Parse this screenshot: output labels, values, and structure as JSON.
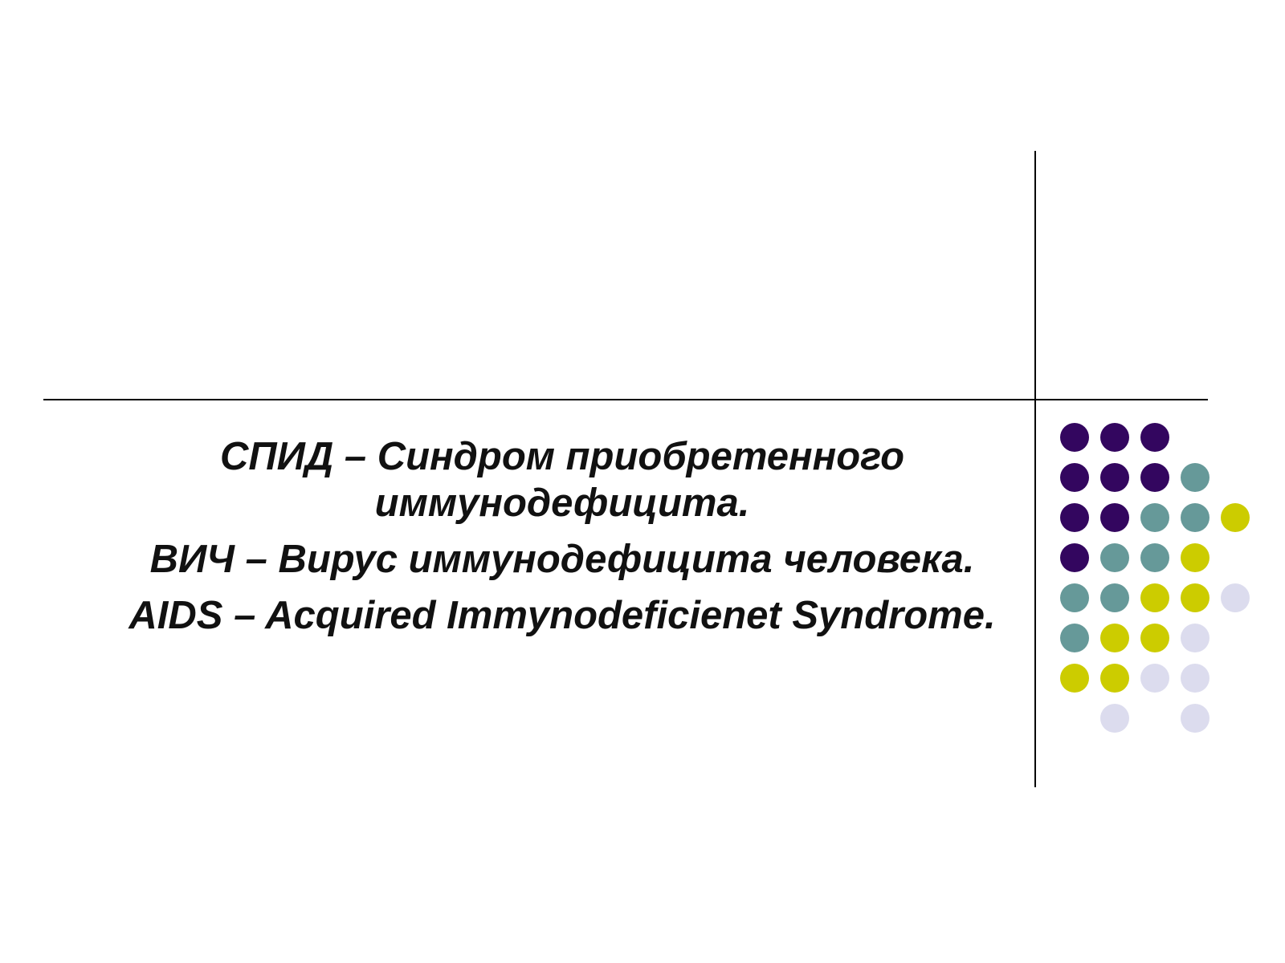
{
  "slide": {
    "lines": [
      "СПИД – Синдром приобретенного иммунодефицита.",
      "ВИЧ – Вирус иммунодефицита человека.",
      "AIDS – Acquired Immynodeficienet Syndrome."
    ]
  },
  "decoration": {
    "palette": {
      "purple": "#33065f",
      "teal": "#669999",
      "olive": "#cccc00",
      "lavender": "#dcdcee"
    },
    "dot_rows": [
      [
        "purple",
        "purple",
        "purple",
        null,
        null
      ],
      [
        "purple",
        "purple",
        "purple",
        "teal",
        null
      ],
      [
        "purple",
        "purple",
        "teal",
        "teal",
        "olive"
      ],
      [
        "purple",
        "teal",
        "teal",
        "olive",
        null
      ],
      [
        "teal",
        "teal",
        "olive",
        "olive",
        "lavender"
      ],
      [
        "teal",
        "olive",
        "olive",
        "lavender",
        null
      ],
      [
        "olive",
        "olive",
        "lavender",
        "lavender",
        null
      ],
      [
        null,
        "lavender",
        null,
        "lavender",
        null
      ]
    ]
  }
}
